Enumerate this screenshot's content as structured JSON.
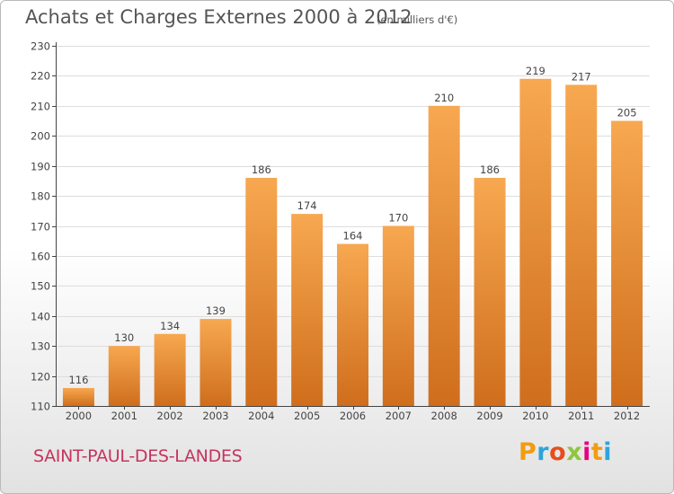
{
  "header": {
    "title": "Achats et Charges Externes 2000 à 2012",
    "subtitle": "(en milliers d'€)"
  },
  "footer": {
    "location": "SAINT-PAUL-DES-LANDES",
    "brand": "Proxiti",
    "brand_colors": [
      "#f39c12",
      "#2ea4d8",
      "#e84e1b",
      "#8dc63f",
      "#e6007e",
      "#f39c12",
      "#2ea4d8"
    ]
  },
  "colors": {
    "bar_light": "#f7a850",
    "bar_dark": "#cf6e1d",
    "axis": "#444444",
    "grid": "#dddddd"
  },
  "chart_data": {
    "type": "bar",
    "categories": [
      "2000",
      "2001",
      "2002",
      "2003",
      "2004",
      "2005",
      "2006",
      "2007",
      "2008",
      "2009",
      "2010",
      "2011",
      "2012"
    ],
    "values": [
      116,
      130,
      134,
      139,
      186,
      174,
      164,
      170,
      210,
      186,
      219,
      217,
      205
    ],
    "data_labels": [
      "116",
      "130",
      "134",
      "139",
      "186",
      "174",
      "164",
      "170",
      "210",
      "186",
      "219",
      "217",
      "205"
    ],
    "yticks": [
      "110",
      "120",
      "130",
      "140",
      "150",
      "160",
      "170",
      "180",
      "190",
      "200",
      "210",
      "220",
      "230"
    ],
    "ylim": [
      110,
      230
    ],
    "grid": true
  }
}
